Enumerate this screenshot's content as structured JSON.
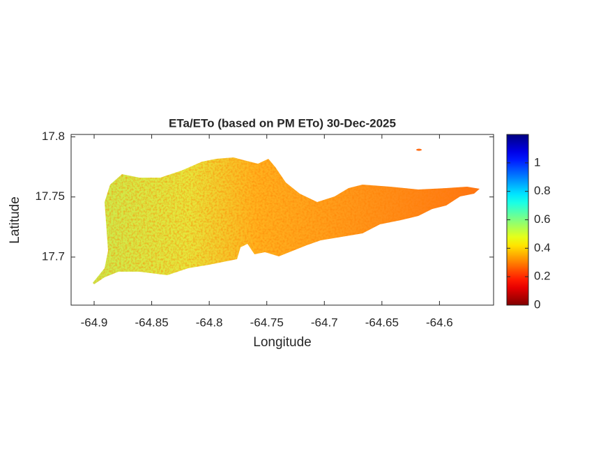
{
  "chart_data": {
    "type": "map",
    "title": "ETa/ETo (based on PM ETo) 30-Dec-2025",
    "x_label": "Longitude",
    "y_label": "Latitude",
    "xlim": [
      -64.92,
      -64.553
    ],
    "xticks": [
      -64.9,
      -64.85,
      -64.8,
      -64.75,
      -64.7,
      -64.65,
      -64.6
    ],
    "ylim": [
      17.66,
      17.802
    ],
    "yticks": [
      17.7,
      17.75,
      17.8
    ],
    "colorbar": {
      "colormap": "jet",
      "reverse": true,
      "clim": [
        0,
        1.2
      ],
      "ticks": [
        0,
        0.2,
        0.4,
        0.6,
        0.8,
        1
      ]
    }
  }
}
